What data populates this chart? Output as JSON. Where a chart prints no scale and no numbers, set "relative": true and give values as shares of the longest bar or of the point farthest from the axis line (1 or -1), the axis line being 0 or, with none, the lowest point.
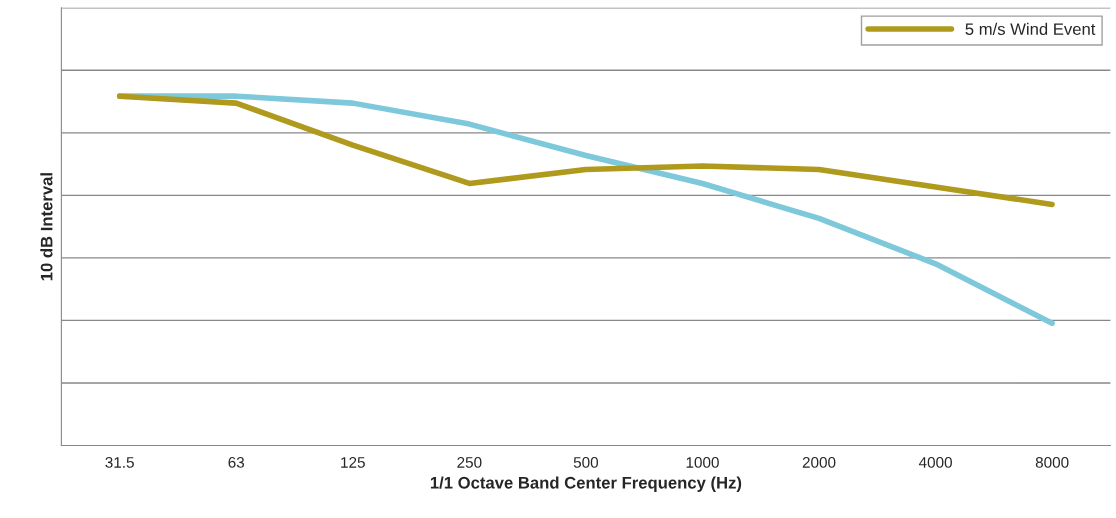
{
  "chart_data": {
    "type": "line",
    "relative": true,
    "xlabel": "1/1 Octave Band Center Frequency (Hz)",
    "ylabel": "10 dB Interval",
    "categories": [
      "31.5",
      "63",
      "125",
      "250",
      "500",
      "1000",
      "2000",
      "4000",
      "8000"
    ],
    "series": [
      {
        "color": "#7ec8dc",
        "values": [
          1.0,
          1.0,
          0.98,
          0.92,
          0.83,
          0.75,
          0.65,
          0.52,
          0.35
        ]
      },
      {
        "name": "5 m/s Wind Event",
        "color": "#b09a1e",
        "values": [
          1.0,
          0.98,
          0.86,
          0.75,
          0.79,
          0.8,
          0.79,
          0.74,
          0.69
        ]
      }
    ],
    "grid": "y",
    "legend": "top right",
    "marker": "none",
    "line_style": "solid"
  }
}
